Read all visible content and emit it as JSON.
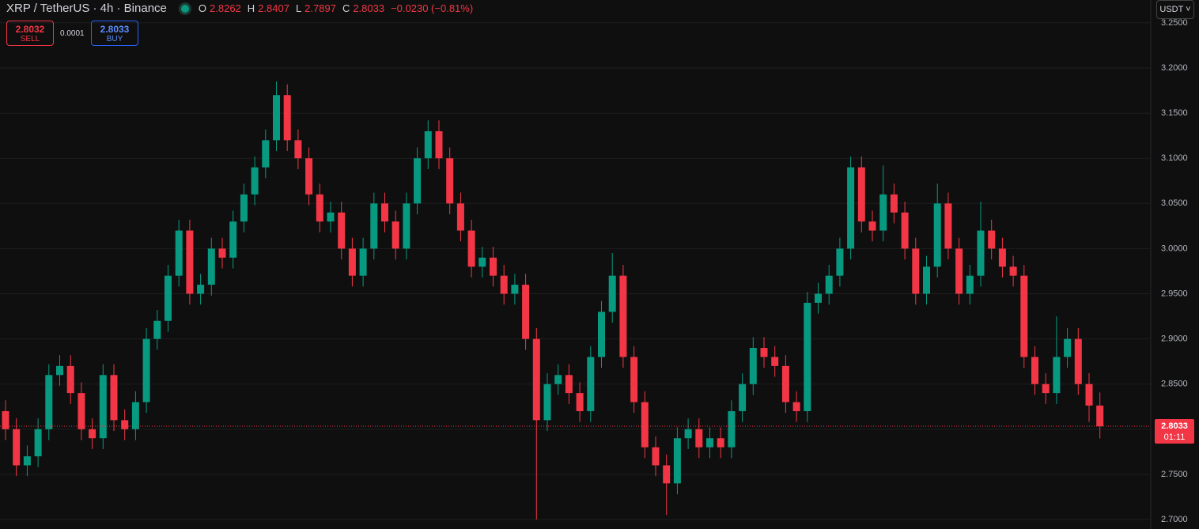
{
  "chart_data": {
    "type": "candlestick",
    "title": "XRP / TetherUS · 4h · Binance",
    "legend": [
      {
        "label": "O",
        "value": "2.8262"
      },
      {
        "label": "H",
        "value": "2.8407"
      },
      {
        "label": "L",
        "value": "2.7897"
      },
      {
        "label": "C",
        "value": "2.8033"
      }
    ],
    "change": "−0.0230 (−0.81%)",
    "order_panel": {
      "sell_price": "2.8032",
      "sell_label": "SELL",
      "spread": "0.0001",
      "buy_price": "2.8033",
      "buy_label": "BUY"
    },
    "currency": "USDT",
    "last_price": 2.8033,
    "countdown": "01:11",
    "up_color": "#089981",
    "down_color": "#f23645",
    "grid": true,
    "ylim": [
      2.6895,
      3.2753
    ],
    "yticks": [
      {
        "value": 2.7,
        "label": "2.7000"
      },
      {
        "value": 2.75,
        "label": "2.7500"
      },
      {
        "value": 2.8,
        "label": "2.8000"
      },
      {
        "value": 2.85,
        "label": "2.8500"
      },
      {
        "value": 2.9,
        "label": "2.9000"
      },
      {
        "value": 2.95,
        "label": "2.9500"
      },
      {
        "value": 3.0,
        "label": "3.0000"
      },
      {
        "value": 3.05,
        "label": "3.0500"
      },
      {
        "value": 3.1,
        "label": "3.1000"
      },
      {
        "value": 3.15,
        "label": "3.1500"
      },
      {
        "value": 3.2,
        "label": "3.2000"
      },
      {
        "value": 3.25,
        "label": "3.2500"
      }
    ],
    "open": [
      2.82,
      2.8,
      2.76,
      2.77,
      2.8,
      2.86,
      2.87,
      2.84,
      2.8,
      2.79,
      2.86,
      2.81,
      2.8,
      2.83,
      2.9,
      2.92,
      2.97,
      3.02,
      2.95,
      2.96,
      3.0,
      2.99,
      3.03,
      3.06,
      3.09,
      3.12,
      3.17,
      3.12,
      3.1,
      3.06,
      3.03,
      3.04,
      3.0,
      2.97,
      3.0,
      3.05,
      3.03,
      3.0,
      3.05,
      3.1,
      3.13,
      3.1,
      3.05,
      3.02,
      2.98,
      2.99,
      2.97,
      2.95,
      2.96,
      2.9,
      2.81,
      2.85,
      2.86,
      2.84,
      2.82,
      2.88,
      2.93,
      2.97,
      2.88,
      2.83,
      2.78,
      2.76,
      2.74,
      2.79,
      2.8,
      2.78,
      2.79,
      2.78,
      2.82,
      2.85,
      2.89,
      2.88,
      2.87,
      2.83,
      2.82,
      2.94,
      2.95,
      2.97,
      3.0,
      3.09,
      3.03,
      3.02,
      3.06,
      3.04,
      3.0,
      2.95,
      2.98,
      3.05,
      3.0,
      2.95,
      2.97,
      3.02,
      3.0,
      2.98,
      2.97,
      2.88,
      2.85,
      2.84,
      2.88,
      2.9,
      2.85,
      2.8262
    ],
    "high": [
      2.832,
      2.812,
      2.782,
      2.812,
      2.872,
      2.882,
      2.882,
      2.852,
      2.812,
      2.872,
      2.872,
      2.822,
      2.842,
      2.912,
      2.932,
      2.982,
      3.032,
      3.032,
      2.972,
      3.012,
      3.012,
      3.042,
      3.072,
      3.102,
      3.132,
      3.185,
      3.182,
      3.132,
      3.112,
      3.072,
      3.052,
      3.052,
      3.012,
      3.012,
      3.062,
      3.062,
      3.042,
      3.062,
      3.112,
      3.142,
      3.142,
      3.112,
      3.062,
      3.032,
      3.002,
      3.002,
      2.982,
      2.972,
      2.972,
      2.912,
      2.862,
      2.872,
      2.872,
      2.852,
      2.892,
      2.942,
      2.995,
      2.982,
      2.892,
      2.842,
      2.792,
      2.772,
      2.802,
      2.812,
      2.812,
      2.802,
      2.802,
      2.832,
      2.862,
      2.902,
      2.902,
      2.892,
      2.882,
      2.842,
      2.952,
      2.962,
      2.982,
      3.012,
      3.102,
      3.102,
      3.042,
      3.092,
      3.072,
      3.052,
      3.012,
      2.992,
      3.072,
      3.062,
      3.012,
      2.982,
      3.052,
      3.032,
      3.012,
      2.992,
      2.982,
      2.892,
      2.862,
      2.925,
      2.912,
      2.912,
      2.862,
      2.8407
    ],
    "low": [
      2.788,
      2.748,
      2.748,
      2.758,
      2.788,
      2.848,
      2.828,
      2.788,
      2.778,
      2.778,
      2.798,
      2.788,
      2.788,
      2.818,
      2.888,
      2.908,
      2.958,
      2.938,
      2.938,
      2.948,
      2.978,
      2.978,
      3.018,
      3.048,
      3.078,
      3.108,
      3.108,
      3.088,
      3.048,
      3.018,
      3.018,
      2.988,
      2.958,
      2.958,
      2.988,
      3.018,
      2.988,
      2.988,
      3.038,
      3.088,
      3.088,
      3.038,
      3.008,
      2.968,
      2.968,
      2.958,
      2.938,
      2.938,
      2.888,
      2.7,
      2.798,
      2.838,
      2.828,
      2.808,
      2.808,
      2.868,
      2.918,
      2.868,
      2.818,
      2.768,
      2.748,
      2.705,
      2.728,
      2.778,
      2.768,
      2.768,
      2.768,
      2.768,
      2.808,
      2.838,
      2.868,
      2.858,
      2.818,
      2.808,
      2.808,
      2.928,
      2.938,
      2.958,
      2.988,
      3.018,
      3.008,
      3.008,
      3.028,
      2.988,
      2.938,
      2.938,
      2.968,
      2.988,
      2.938,
      2.938,
      2.958,
      2.988,
      2.968,
      2.958,
      2.868,
      2.838,
      2.828,
      2.828,
      2.868,
      2.838,
      2.808,
      2.7897
    ],
    "close": [
      2.8,
      2.76,
      2.77,
      2.8,
      2.86,
      2.87,
      2.84,
      2.8,
      2.79,
      2.86,
      2.81,
      2.8,
      2.83,
      2.9,
      2.92,
      2.97,
      3.02,
      2.95,
      2.96,
      3.0,
      2.99,
      3.03,
      3.06,
      3.09,
      3.12,
      3.17,
      3.12,
      3.1,
      3.06,
      3.03,
      3.04,
      3.0,
      2.97,
      3.0,
      3.05,
      3.03,
      3.0,
      3.05,
      3.1,
      3.13,
      3.1,
      3.05,
      3.02,
      2.98,
      2.99,
      2.97,
      2.95,
      2.96,
      2.9,
      2.81,
      2.85,
      2.86,
      2.84,
      2.82,
      2.88,
      2.93,
      2.97,
      2.88,
      2.83,
      2.78,
      2.76,
      2.74,
      2.79,
      2.8,
      2.78,
      2.79,
      2.78,
      2.82,
      2.85,
      2.89,
      2.88,
      2.87,
      2.83,
      2.82,
      2.94,
      2.95,
      2.97,
      3.0,
      3.09,
      3.03,
      3.02,
      3.06,
      3.04,
      3.0,
      2.95,
      2.98,
      3.05,
      3.0,
      2.95,
      2.97,
      3.02,
      3.0,
      2.98,
      2.97,
      2.88,
      2.85,
      2.84,
      2.88,
      2.9,
      2.85,
      2.8262,
      2.8033
    ]
  }
}
